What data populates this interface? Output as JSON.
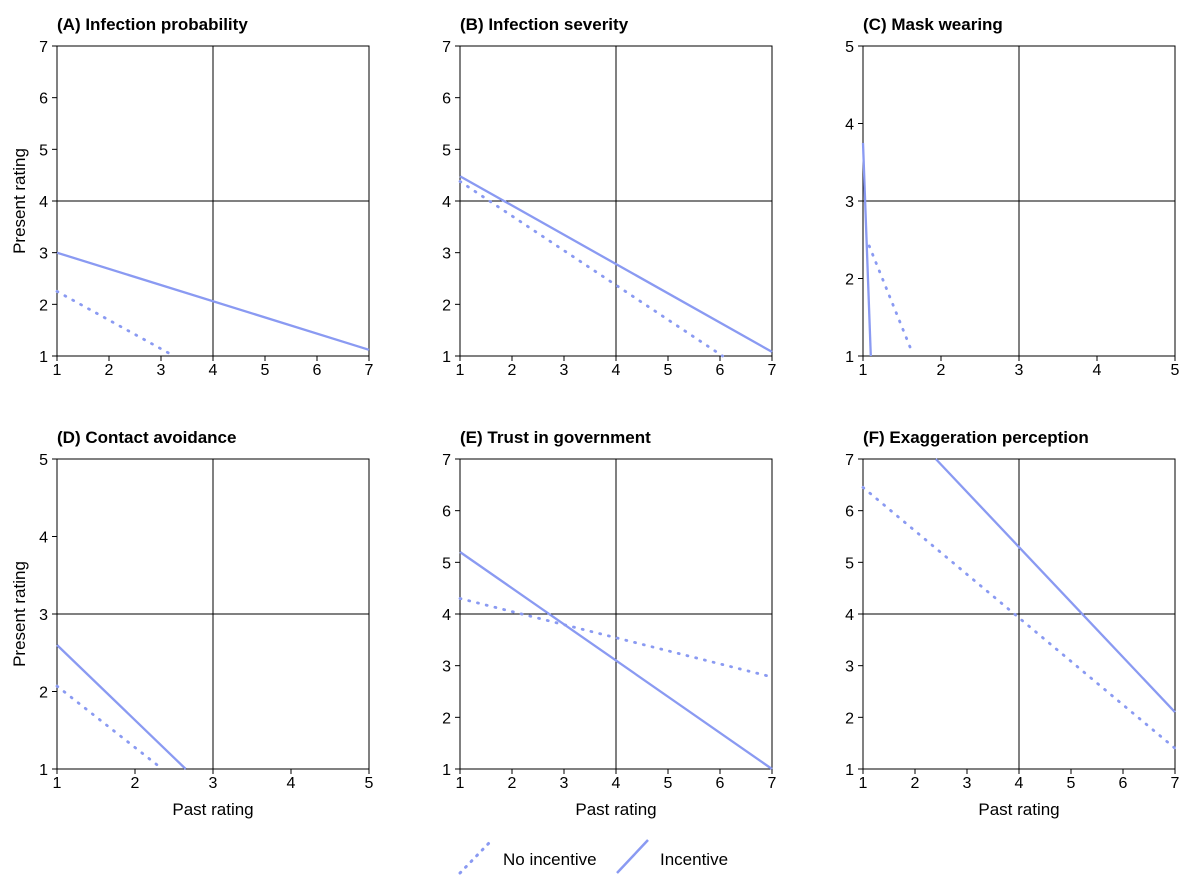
{
  "legend": {
    "no_incentive": "No incentive",
    "incentive": "Incentive",
    "placement": "bottom-center"
  },
  "colors": {
    "line": "#8a9af2",
    "axis": "#000000",
    "reference": "#000000"
  },
  "chart_data": [
    {
      "type": "line",
      "title": "(A) Infection probability",
      "xlabel": "",
      "ylabel": "Present rating",
      "xlim": [
        1,
        7
      ],
      "ylim": [
        1,
        7
      ],
      "ticks": [
        "1",
        "2",
        "3",
        "4",
        "5",
        "6",
        "7"
      ],
      "midpoint": 4,
      "series": [
        {
          "name": "No incentive",
          "style": "dotted",
          "x": [
            1,
            3.25
          ],
          "y": [
            2.25,
            1
          ]
        },
        {
          "name": "Incentive",
          "style": "solid",
          "x": [
            1,
            7
          ],
          "y": [
            3.0,
            1.12
          ]
        }
      ]
    },
    {
      "type": "line",
      "title": "(B) Infection severity",
      "xlabel": "",
      "ylabel": "",
      "xlim": [
        1,
        7
      ],
      "ylim": [
        1,
        7
      ],
      "ticks": [
        "1",
        "2",
        "3",
        "4",
        "5",
        "6",
        "7"
      ],
      "midpoint": 4,
      "series": [
        {
          "name": "No incentive",
          "style": "dotted",
          "x": [
            1,
            6.05
          ],
          "y": [
            4.38,
            1
          ]
        },
        {
          "name": "Incentive",
          "style": "solid",
          "x": [
            1,
            7
          ],
          "y": [
            4.48,
            1.08
          ]
        }
      ]
    },
    {
      "type": "line",
      "title": "(C) Mask wearing",
      "xlabel": "",
      "ylabel": "",
      "xlim": [
        1,
        5
      ],
      "ylim": [
        1,
        5
      ],
      "ticks": [
        "1",
        "2",
        "3",
        "4",
        "5"
      ],
      "midpoint": 3,
      "series": [
        {
          "name": "No incentive",
          "style": "dotted",
          "x": [
            1.08,
            1.63
          ],
          "y": [
            2.42,
            1.05
          ]
        },
        {
          "name": "Incentive",
          "style": "solid",
          "x": [
            1.0,
            1.1
          ],
          "y": [
            3.75,
            1.0
          ]
        }
      ]
    },
    {
      "type": "line",
      "title": "(D) Contact avoidance",
      "xlabel": "Past rating",
      "ylabel": "Present rating",
      "xlim": [
        1,
        5
      ],
      "ylim": [
        1,
        5
      ],
      "ticks": [
        "1",
        "2",
        "3",
        "4",
        "5"
      ],
      "midpoint": 3,
      "series": [
        {
          "name": "No incentive",
          "style": "dotted",
          "x": [
            1,
            2.35
          ],
          "y": [
            2.07,
            1
          ]
        },
        {
          "name": "Incentive",
          "style": "solid",
          "x": [
            1,
            2.65
          ],
          "y": [
            2.6,
            1
          ]
        }
      ]
    },
    {
      "type": "line",
      "title": "(E) Trust in government",
      "xlabel": "Past rating",
      "ylabel": "",
      "xlim": [
        1,
        7
      ],
      "ylim": [
        1,
        7
      ],
      "ticks": [
        "1",
        "2",
        "3",
        "4",
        "5",
        "6",
        "7"
      ],
      "midpoint": 4,
      "series": [
        {
          "name": "No incentive",
          "style": "dotted",
          "x": [
            1,
            7
          ],
          "y": [
            4.3,
            2.78
          ]
        },
        {
          "name": "Incentive",
          "style": "solid",
          "x": [
            1,
            7
          ],
          "y": [
            5.2,
            1.0
          ]
        }
      ]
    },
    {
      "type": "line",
      "title": "(F) Exaggeration perception",
      "xlabel": "Past rating",
      "ylabel": "",
      "xlim": [
        1,
        7
      ],
      "ylim": [
        1,
        7
      ],
      "ticks": [
        "1",
        "2",
        "3",
        "4",
        "5",
        "6",
        "7"
      ],
      "midpoint": 4,
      "series": [
        {
          "name": "No incentive",
          "style": "dotted",
          "x": [
            1,
            7
          ],
          "y": [
            6.45,
            1.4
          ]
        },
        {
          "name": "Incentive",
          "style": "solid",
          "x": [
            2.4,
            7
          ],
          "y": [
            7.0,
            2.1
          ]
        }
      ]
    }
  ]
}
